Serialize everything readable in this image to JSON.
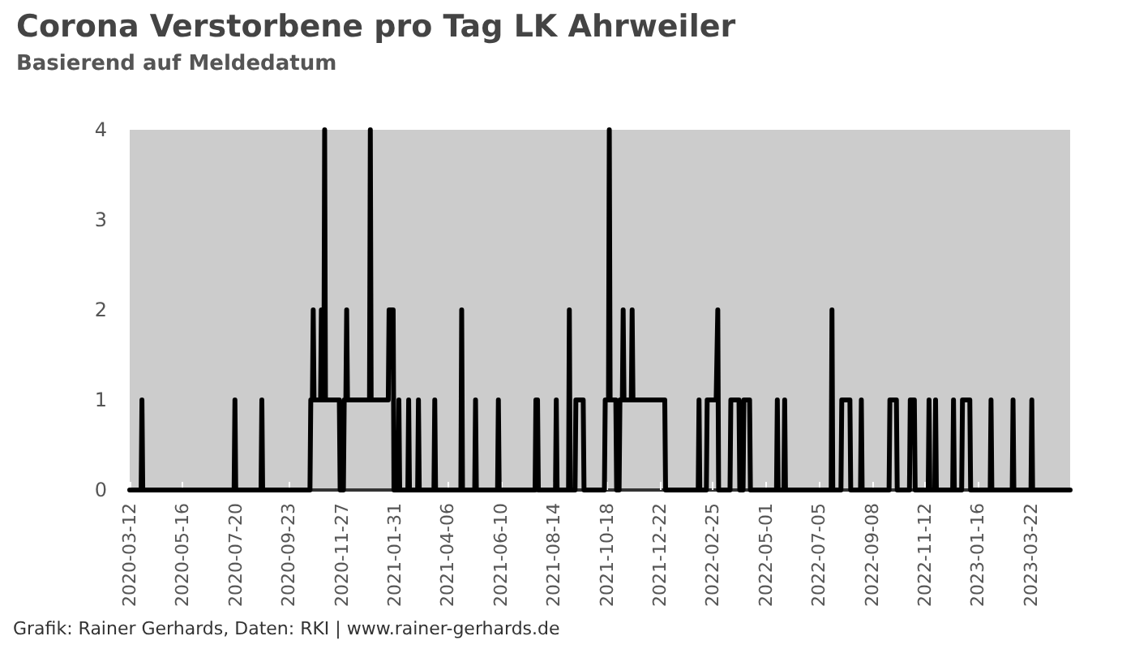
{
  "chart_data": {
    "type": "line",
    "title": "Corona Verstorbene pro Tag LK Ahrweiler",
    "subtitle": "Basierend auf Meldedatum",
    "annotations": [
      "Grafik: Rainer Gerhards, Daten: RKI | www.rainer-gerhards.de"
    ],
    "x": [
      "2020-03-12",
      "2020-03-26",
      "2020-03-27",
      "2020-03-28",
      "2020-07-18",
      "2020-07-19",
      "2020-07-20",
      "2020-08-20",
      "2020-08-21",
      "2020-08-22",
      "2020-10-19",
      "2020-10-20",
      "2020-10-22",
      "2020-10-23",
      "2020-10-24",
      "2020-11-01",
      "2020-11-02",
      "2020-11-03",
      "2020-11-05",
      "2020-11-06",
      "2020-11-07",
      "2020-11-21",
      "2020-11-24",
      "2020-11-25",
      "2020-11-29",
      "2020-11-30",
      "2020-12-02",
      "2020-12-03",
      "2020-12-04",
      "2020-12-31",
      "2021-01-01",
      "2021-01-02",
      "2021-01-23",
      "2021-01-24",
      "2021-01-29",
      "2021-01-30",
      "2021-02-04",
      "2021-02-05",
      "2021-02-06",
      "2021-02-16",
      "2021-02-17",
      "2021-02-18",
      "2021-02-28",
      "2021-03-01",
      "2021-03-02",
      "2021-03-20",
      "2021-03-21",
      "2021-03-22",
      "2021-04-22",
      "2021-04-23",
      "2021-04-24",
      "2021-05-09",
      "2021-05-10",
      "2021-05-11",
      "2021-06-06",
      "2021-06-07",
      "2021-06-08",
      "2021-07-22",
      "2021-07-23",
      "2021-07-25",
      "2021-07-26",
      "2021-08-16",
      "2021-08-17",
      "2021-08-18",
      "2021-09-01",
      "2021-09-02",
      "2021-09-03",
      "2021-09-09",
      "2021-09-10",
      "2021-09-19",
      "2021-09-20",
      "2021-10-15",
      "2021-10-16",
      "2021-10-20",
      "2021-10-21",
      "2021-10-22",
      "2021-10-29",
      "2021-10-30",
      "2021-11-02",
      "2021-11-03",
      "2021-11-06",
      "2021-11-07",
      "2021-11-08",
      "2021-11-17",
      "2021-11-18",
      "2021-11-19",
      "2021-12-28",
      "2021-12-29",
      "2022-02-07",
      "2022-02-08",
      "2022-02-09",
      "2022-02-17",
      "2022-02-18",
      "2022-03-01",
      "2022-03-02",
      "2022-03-03",
      "2022-03-04",
      "2022-03-18",
      "2022-03-19",
      "2022-03-29",
      "2022-03-30",
      "2022-04-03",
      "2022-04-04",
      "2022-04-11",
      "2022-04-12",
      "2022-05-14",
      "2022-05-15",
      "2022-05-16",
      "2022-05-23",
      "2022-05-24",
      "2022-05-25",
      "2022-07-20",
      "2022-07-21",
      "2022-07-22",
      "2022-08-01",
      "2022-08-02",
      "2022-08-12",
      "2022-08-13",
      "2022-08-25",
      "2022-08-26",
      "2022-08-27",
      "2022-09-29",
      "2022-09-30",
      "2022-10-08",
      "2022-10-09",
      "2022-10-24",
      "2022-10-25",
      "2022-10-30",
      "2022-10-31",
      "2022-11-16",
      "2022-11-17",
      "2022-11-18",
      "2022-11-24",
      "2022-11-25",
      "2022-11-26",
      "2022-12-16",
      "2022-12-17",
      "2022-12-18",
      "2022-12-27",
      "2022-12-28",
      "2023-01-06",
      "2023-01-07",
      "2023-01-31",
      "2023-02-01",
      "2023-02-02",
      "2023-02-27",
      "2023-02-28",
      "2023-03-01",
      "2023-03-22",
      "2023-03-23",
      "2023-03-24",
      "2023-05-09"
    ],
    "series": [
      {
        "color": "#000000",
        "values": [
          0,
          0,
          1,
          0,
          0,
          1,
          0,
          0,
          1,
          0,
          0,
          1,
          1,
          2,
          1,
          1,
          2,
          1,
          1,
          4,
          1,
          1,
          1,
          0,
          0,
          1,
          1,
          2,
          1,
          1,
          4,
          1,
          1,
          2,
          2,
          0,
          0,
          1,
          0,
          0,
          1,
          0,
          0,
          1,
          0,
          0,
          1,
          0,
          0,
          2,
          0,
          0,
          1,
          0,
          0,
          1,
          0,
          0,
          1,
          1,
          0,
          0,
          1,
          0,
          0,
          2,
          0,
          0,
          1,
          1,
          0,
          0,
          1,
          1,
          4,
          1,
          1,
          0,
          0,
          1,
          1,
          2,
          1,
          1,
          2,
          1,
          1,
          0,
          0,
          1,
          0,
          0,
          1,
          1,
          1,
          2,
          0,
          0,
          1,
          1,
          0,
          0,
          1,
          1,
          0,
          0,
          1,
          0,
          0,
          1,
          0,
          0,
          2,
          0,
          0,
          1,
          1,
          0,
          0,
          1,
          0,
          0,
          1,
          1,
          0,
          0,
          1,
          1,
          0,
          0,
          1,
          0,
          0,
          1,
          0,
          0,
          1,
          0,
          0,
          1,
          1,
          0,
          0,
          1,
          0,
          0,
          1,
          0,
          0,
          1,
          0,
          0
        ]
      }
    ],
    "xlim": [
      "2020-03-12",
      "2023-05-09"
    ],
    "xticks": [
      "2020-03-12",
      "2020-05-16",
      "2020-07-20",
      "2020-09-23",
      "2020-11-27",
      "2021-01-31",
      "2021-04-06",
      "2021-06-10",
      "2021-08-14",
      "2021-10-18",
      "2021-12-22",
      "2022-02-25",
      "2022-05-01",
      "2022-07-05",
      "2022-09-08",
      "2022-11-12",
      "2023-01-16",
      "2023-03-22"
    ],
    "ylim": [
      0,
      4
    ],
    "yticks": [
      0,
      1,
      2,
      3,
      4
    ],
    "grid": false,
    "marker": "none",
    "line_style": "solid"
  }
}
